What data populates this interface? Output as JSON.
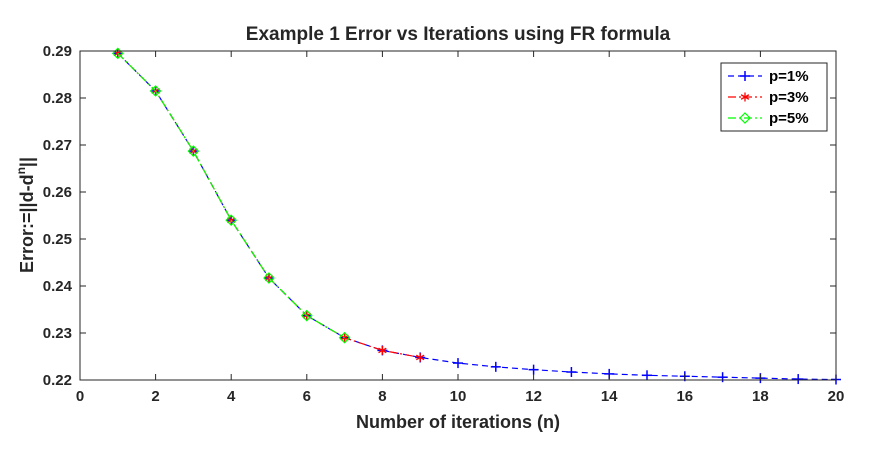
{
  "chart_data": {
    "type": "line",
    "title": "Example 1 Error vs Iterations using FR formula",
    "xlabel": "Number of iterations (n)",
    "ylabel_prefix": "Error:=||d-d",
    "ylabel_sup": "n",
    "ylabel_suffix": "||",
    "xlim": [
      0,
      20
    ],
    "ylim": [
      0.22,
      0.29
    ],
    "xticks": [
      0,
      2,
      4,
      6,
      8,
      10,
      12,
      14,
      16,
      18,
      20
    ],
    "yticks": [
      0.22,
      0.23,
      0.24,
      0.25,
      0.26,
      0.27,
      0.28,
      0.29
    ],
    "xtick_labels": [
      "0",
      "2",
      "4",
      "6",
      "8",
      "10",
      "12",
      "14",
      "16",
      "18",
      "20"
    ],
    "ytick_labels": [
      "0.22",
      "0.23",
      "0.24",
      "0.25",
      "0.26",
      "0.27",
      "0.28",
      "0.29"
    ],
    "grid": false,
    "legend_position": "top-right",
    "series": [
      {
        "name": "p=1%",
        "color": "#0000ff",
        "marker": "plus",
        "line_style": "dashed",
        "x": [
          1,
          2,
          3,
          4,
          5,
          6,
          7,
          8,
          9,
          10,
          11,
          12,
          13,
          14,
          15,
          16,
          17,
          18,
          19,
          20
        ],
        "y": [
          0.2895,
          0.2815,
          0.2687,
          0.254,
          0.2417,
          0.2337,
          0.229,
          0.2263,
          0.2248,
          0.2236,
          0.2228,
          0.2222,
          0.2217,
          0.2213,
          0.221,
          0.2208,
          0.2206,
          0.2204,
          0.2202,
          0.2201
        ]
      },
      {
        "name": "p=3%",
        "color": "#ff0000",
        "marker": "asterisk",
        "line_style": "dashdot",
        "x": [
          1,
          2,
          3,
          4,
          5,
          6,
          7,
          8,
          9
        ],
        "y": [
          0.2895,
          0.2815,
          0.2687,
          0.254,
          0.2417,
          0.2337,
          0.229,
          0.2263,
          0.2248
        ]
      },
      {
        "name": "p=5%",
        "color": "#00ff00",
        "marker": "diamond",
        "line_style": "dashdot",
        "x": [
          1,
          2,
          3,
          4,
          5,
          6,
          7
        ],
        "y": [
          0.2895,
          0.2815,
          0.2687,
          0.254,
          0.2417,
          0.2337,
          0.229
        ]
      }
    ]
  }
}
